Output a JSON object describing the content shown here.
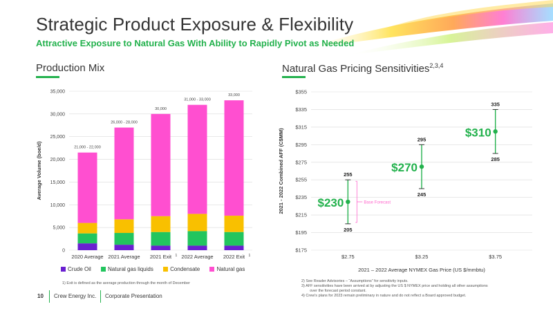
{
  "header": {
    "title": "Strategic Product Exposure & Flexibility",
    "subtitle": "Attractive Exposure to Natural Gas With Ability to Rapidly Pivot as Needed"
  },
  "colors": {
    "crude_oil": "#6a1fd1",
    "ngl": "#22c55e",
    "condensate": "#f9c000",
    "natural_gas": "#ff4fd0",
    "accent": "#22b14c",
    "base_forecast": "#ff66cc"
  },
  "production": {
    "section_title": "Production Mix",
    "footnote": "1)   Exit is defined as the average production through the month of December"
  },
  "pricing": {
    "section_title": "Natural Gas Pricing Sensitivities",
    "section_sup": "2,3,4",
    "base_forecast_label": "Base Forecast",
    "footnotes": [
      "2)    See Reader Advisories – “Assumptions” for sensitivity inputs.",
      "3)    AFF sensitivities have been arrived at by adjusting the US $ NYMEX price and holding all other assumptions",
      "        over the forecast period constant.",
      "4)    Crew's plans for 2023 remain preliminary in nature and do not reflect a Board approved budget."
    ]
  },
  "footer": {
    "page_number": "10",
    "company": "Crew Energy Inc.",
    "doc": "Corporate Presentation"
  },
  "chart_data": [
    {
      "type": "bar",
      "stacked": true,
      "categories": [
        "2020 Average",
        "2021 Average",
        "2021 Exit",
        "2022 Average",
        "2022 Exit"
      ],
      "category_sups": [
        "",
        "",
        "1",
        "",
        "1"
      ],
      "series": [
        {
          "name": "Crude Oil",
          "values": [
            1500,
            1200,
            1000,
            1000,
            1000
          ]
        },
        {
          "name": "Natural gas liquids",
          "values": [
            2200,
            2600,
            3000,
            3200,
            3000
          ]
        },
        {
          "name": "Condensate",
          "values": [
            2300,
            3000,
            3500,
            3800,
            3600
          ]
        },
        {
          "name": "Natural gas",
          "values": [
            15500,
            20200,
            22500,
            24000,
            25400
          ]
        }
      ],
      "data_labels": [
        "21,000 - 22,000",
        "26,000 - 28,000",
        "30,000",
        "31,000 - 33,000",
        "33,000"
      ],
      "ylabel": "Average Volume (boe/d)",
      "ylim": [
        0,
        35000
      ],
      "yticks": [
        "0",
        "5,000",
        "10,000",
        "15,000",
        "20,000",
        "25,000",
        "30,000",
        "35,000"
      ],
      "grid": true,
      "legend": "bottom"
    },
    {
      "type": "scatter",
      "x": [
        "$2.75",
        "$3.25",
        "$3.75"
      ],
      "points": [
        {
          "x": "$2.75",
          "value": 230,
          "low": 205,
          "high": 255,
          "label": "$230",
          "low_label": "205",
          "high_label": "255"
        },
        {
          "x": "$3.25",
          "value": 270,
          "low": 245,
          "high": 295,
          "label": "$270",
          "low_label": "245",
          "high_label": "295"
        },
        {
          "x": "$3.75",
          "value": 310,
          "low": 285,
          "high": 335,
          "label": "$310",
          "low_label": "285",
          "high_label": "335"
        }
      ],
      "xlabel": "2021 – 2022 Average NYMEX Gas Price (US $/mmbtu)",
      "ylabel": "2021 - 2022 Combined AFF (C$MM)",
      "ylim": [
        175,
        355
      ],
      "yticks": [
        "$175",
        "$195",
        "$215",
        "$235",
        "$255",
        "$275",
        "$295",
        "$315",
        "$335",
        "$355"
      ],
      "grid": true
    }
  ]
}
